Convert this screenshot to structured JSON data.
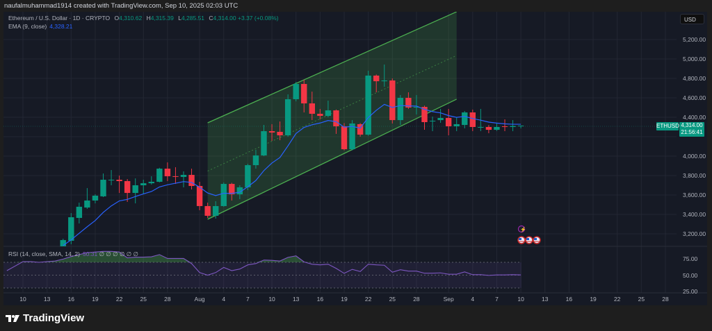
{
  "credit": "naufalmuhammad1914 created with TradingView.com, Sep 10, 2025 02:03 UTC",
  "legend": {
    "symbol_title": "Ethereum / U.S. Dollar · 1D · CRYPTO",
    "o_label": "O",
    "o": "4,310.62",
    "h_label": "H",
    "h": "4,315.39",
    "l_label": "L",
    "l": "4,285.51",
    "c_label": "C",
    "c": "4,314.00",
    "change": "+3.37 (+0.08%)",
    "ema_label": "EMA (9, close)",
    "ema_value": "4,328.21"
  },
  "currency_button": "USD",
  "price_axis": [
    "5,200.00",
    "5,000.00",
    "4,800.00",
    "4,600.00",
    "4,400.00",
    "4,000.00",
    "3,800.00",
    "3,600.00",
    "3,400.00",
    "3,200.00"
  ],
  "price_axis_values": [
    5200,
    5000,
    4800,
    4600,
    4400,
    4000,
    3800,
    3600,
    3400,
    3200
  ],
  "symbol_tag": "ETHUSD",
  "last_price": "4,314.00",
  "countdown": "21:56:41",
  "rsi": {
    "label": "RSI (14, close, SMA, 14, 2)",
    "value": "50.31",
    "na_values": "∅ ∅ ∅ ∅ ∅ ∅",
    "axis": [
      "75.00",
      "50.00",
      "25.00"
    ],
    "axis_values": [
      75,
      50,
      25
    ]
  },
  "time_axis": [
    {
      "label": "10",
      "date": "2025-07-10"
    },
    {
      "label": "13",
      "date": "2025-07-13"
    },
    {
      "label": "16",
      "date": "2025-07-16"
    },
    {
      "label": "19",
      "date": "2025-07-19"
    },
    {
      "label": "22",
      "date": "2025-07-22"
    },
    {
      "label": "25",
      "date": "2025-07-25"
    },
    {
      "label": "28",
      "date": "2025-07-28"
    },
    {
      "label": "Aug",
      "date": "2025-08-01"
    },
    {
      "label": "4",
      "date": "2025-08-04"
    },
    {
      "label": "7",
      "date": "2025-08-07"
    },
    {
      "label": "10",
      "date": "2025-08-10"
    },
    {
      "label": "13",
      "date": "2025-08-13"
    },
    {
      "label": "16",
      "date": "2025-08-16"
    },
    {
      "label": "19",
      "date": "2025-08-19"
    },
    {
      "label": "22",
      "date": "2025-08-22"
    },
    {
      "label": "25",
      "date": "2025-08-25"
    },
    {
      "label": "28",
      "date": "2025-08-28"
    },
    {
      "label": "Sep",
      "date": "2025-09-01"
    },
    {
      "label": "4",
      "date": "2025-09-04"
    },
    {
      "label": "7",
      "date": "2025-09-07"
    },
    {
      "label": "10",
      "date": "2025-09-10"
    },
    {
      "label": "13",
      "date": "2025-09-13"
    },
    {
      "label": "16",
      "date": "2025-09-16"
    },
    {
      "label": "19",
      "date": "2025-09-19"
    },
    {
      "label": "22",
      "date": "2025-09-22"
    },
    {
      "label": "25",
      "date": "2025-09-25"
    },
    {
      "label": "28",
      "date": "2025-09-28"
    }
  ],
  "logo_text": "TradingView",
  "colors": {
    "up": "#089981",
    "down": "#f23645",
    "ema": "#2962ff",
    "rsi": "#7e57c2",
    "channel": "#4caf50"
  },
  "chart_data": {
    "type": "candlestick",
    "symbol": "ETHUSD",
    "interval": "1D",
    "ylim": [
      3100,
      5400
    ],
    "candles_columns": [
      "date",
      "open",
      "high",
      "low",
      "close"
    ],
    "candles": [
      [
        "2025-07-15",
        3071,
        3150,
        3060,
        3136
      ],
      [
        "2025-07-16",
        3129,
        3414,
        3093,
        3371
      ],
      [
        "2025-07-17",
        3364,
        3521,
        3307,
        3479
      ],
      [
        "2025-07-18",
        3471,
        3671,
        3457,
        3543
      ],
      [
        "2025-07-19",
        3543,
        3607,
        3514,
        3593
      ],
      [
        "2025-07-20",
        3586,
        3821,
        3579,
        3757
      ],
      [
        "2025-07-21",
        3750,
        3857,
        3700,
        3757
      ],
      [
        "2025-07-22",
        3757,
        3800,
        3621,
        3743
      ],
      [
        "2025-07-23",
        3743,
        3764,
        3529,
        3621
      ],
      [
        "2025-07-24",
        3621,
        3771,
        3514,
        3700
      ],
      [
        "2025-07-25",
        3700,
        3757,
        3607,
        3721
      ],
      [
        "2025-07-26",
        3721,
        3793,
        3707,
        3736
      ],
      [
        "2025-07-27",
        3736,
        3880,
        3730,
        3871
      ],
      [
        "2025-07-28",
        3871,
        3936,
        3743,
        3793
      ],
      [
        "2025-07-29",
        3793,
        3886,
        3714,
        3786
      ],
      [
        "2025-07-30",
        3786,
        3843,
        3679,
        3807
      ],
      [
        "2025-07-31",
        3807,
        3871,
        3657,
        3693
      ],
      [
        "2025-08-01",
        3693,
        3736,
        3443,
        3486
      ],
      [
        "2025-08-02",
        3486,
        3521,
        3364,
        3386
      ],
      [
        "2025-08-03",
        3386,
        3536,
        3357,
        3486
      ],
      [
        "2025-08-04",
        3486,
        3729,
        3480,
        3714
      ],
      [
        "2025-08-05",
        3714,
        3725,
        3543,
        3607
      ],
      [
        "2025-08-06",
        3607,
        3700,
        3557,
        3679
      ],
      [
        "2025-08-07",
        3679,
        3921,
        3650,
        3907
      ],
      [
        "2025-08-08",
        3907,
        4064,
        3871,
        4007
      ],
      [
        "2025-08-09",
        4007,
        4321,
        4000,
        4257
      ],
      [
        "2025-08-10",
        4257,
        4329,
        4157,
        4243
      ],
      [
        "2025-08-11",
        4250,
        4357,
        4164,
        4214
      ],
      [
        "2025-08-12",
        4214,
        4636,
        4200,
        4586
      ],
      [
        "2025-08-13",
        4586,
        4764,
        4564,
        4743
      ],
      [
        "2025-08-14",
        4743,
        4786,
        4450,
        4543
      ],
      [
        "2025-08-15",
        4543,
        4664,
        4371,
        4436
      ],
      [
        "2025-08-16",
        4436,
        4486,
        4379,
        4414
      ],
      [
        "2025-08-17",
        4414,
        4571,
        4400,
        4471
      ],
      [
        "2025-08-18",
        4471,
        4480,
        4229,
        4307
      ],
      [
        "2025-08-19",
        4307,
        4340,
        4060,
        4071
      ],
      [
        "2025-08-20",
        4071,
        4371,
        4060,
        4336
      ],
      [
        "2025-08-21",
        4329,
        4340,
        4200,
        4221
      ],
      [
        "2025-08-22",
        4221,
        4879,
        4210,
        4829
      ],
      [
        "2025-08-23",
        4829,
        4840,
        4657,
        4771
      ],
      [
        "2025-08-24",
        4771,
        4943,
        4714,
        4779
      ],
      [
        "2025-08-25",
        4779,
        4800,
        4336,
        4371
      ],
      [
        "2025-08-26",
        4371,
        4629,
        4321,
        4600
      ],
      [
        "2025-08-27",
        4600,
        4657,
        4486,
        4500
      ],
      [
        "2025-08-28",
        4500,
        4629,
        4429,
        4507
      ],
      [
        "2025-08-29",
        4507,
        4520,
        4271,
        4350
      ],
      [
        "2025-08-30",
        4357,
        4407,
        4257,
        4364
      ],
      [
        "2025-08-31",
        4371,
        4486,
        4343,
        4393
      ],
      [
        "2025-09-01",
        4393,
        4486,
        4214,
        4307
      ],
      [
        "2025-09-02",
        4307,
        4400,
        4257,
        4329
      ],
      [
        "2025-09-03",
        4321,
        4464,
        4286,
        4450
      ],
      [
        "2025-09-04",
        4450,
        4479,
        4257,
        4300
      ],
      [
        "2025-09-05",
        4296,
        4486,
        4257,
        4300
      ],
      [
        "2025-09-06",
        4300,
        4320,
        4236,
        4271
      ],
      [
        "2025-09-07",
        4271,
        4336,
        4260,
        4300
      ],
      [
        "2025-09-08",
        4307,
        4379,
        4257,
        4300
      ],
      [
        "2025-09-09",
        4300,
        4371,
        4257,
        4310
      ],
      [
        "2025-09-10",
        4310.62,
        4315.39,
        4285.51,
        4314.0
      ]
    ],
    "ema9": [
      3080,
      3138,
      3206,
      3273,
      3337,
      3421,
      3488,
      3539,
      3555,
      3584,
      3611,
      3636,
      3683,
      3705,
      3721,
      3738,
      3729,
      3680,
      3621,
      3594,
      3618,
      3616,
      3629,
      3685,
      3749,
      3851,
      3929,
      3986,
      4106,
      4233,
      4295,
      4323,
      4341,
      4367,
      4355,
      4298,
      4306,
      4289,
      4397,
      4472,
      4533,
      4501,
      4521,
      4517,
      4515,
      4482,
      4458,
      4445,
      4417,
      4399,
      4409,
      4387,
      4370,
      4350,
      4340,
      4332,
      4328,
      4328.21
    ],
    "channel": {
      "start_date": "2025-08-02",
      "end_date": "2025-09-02",
      "upper": [
        4343,
        5486
      ],
      "lower": [
        3350,
        4586
      ]
    },
    "rsi_start_date": "2025-07-08",
    "rsi14": [
      57,
      64,
      71,
      71,
      70,
      71,
      72,
      75,
      79,
      82,
      85,
      86,
      87,
      87,
      86,
      77,
      78,
      78,
      78.6,
      82,
      76,
      76,
      76,
      68,
      54,
      50,
      54,
      62,
      57,
      59.5,
      66,
      68,
      73.5,
      73,
      72,
      77.7,
      80,
      70.7,
      67,
      66,
      67,
      60.5,
      52.8,
      59,
      55.6,
      67,
      66,
      65.4,
      54.6,
      58.4,
      56.3,
      56.3,
      53,
      53,
      53.5,
      51.4,
      51.4,
      55,
      50.7,
      50.7,
      49.6,
      50.3,
      50.3,
      50.7,
      50.31
    ],
    "rsi_bands": [
      70,
      50,
      30
    ]
  }
}
